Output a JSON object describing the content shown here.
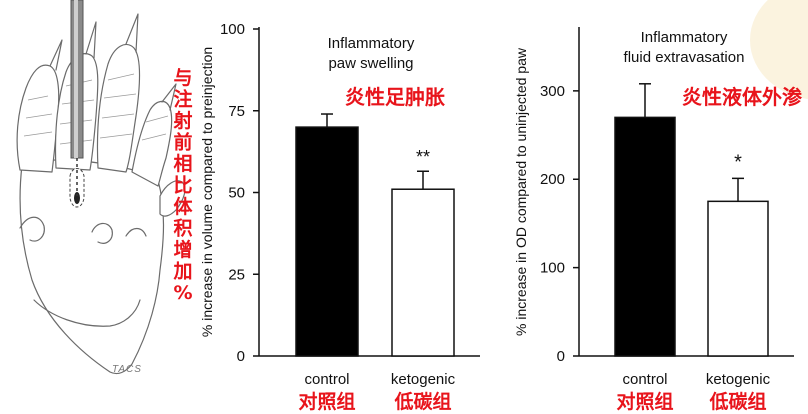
{
  "illustration": {
    "signature": "TACS"
  },
  "left_annotation": "与注射前相比体积增加%",
  "colors": {
    "annotation_red": "#e8141b",
    "control_bar": "#000000",
    "ketogenic_bar": "#ffffff"
  },
  "chart_data": [
    {
      "type": "bar",
      "title": "Inflammatory\npaw swelling",
      "title_lines": [
        "Inflammatory",
        "paw swelling"
      ],
      "title_cn": "炎性足肿胀",
      "ylabel": "% increase in volume compared to preinjection",
      "ylim": [
        0,
        100
      ],
      "yticks": [
        0,
        25,
        50,
        75,
        100
      ],
      "categories": [
        "control",
        "ketogenic"
      ],
      "categories_cn": [
        "对照组",
        "低碳组"
      ],
      "values": [
        70,
        51
      ],
      "errors": [
        4,
        5.5
      ],
      "significance": [
        "",
        "**"
      ],
      "bar_colors": [
        "#000000",
        "#ffffff"
      ],
      "grid": false
    },
    {
      "type": "bar",
      "title": "Inflammatory\nfluid extravasation",
      "title_lines": [
        "Inflammatory",
        "fluid extravasation"
      ],
      "title_cn": "炎性液体外渗",
      "ylabel": "% increase in OD compared to uninjected paw",
      "ylim": [
        0,
        370
      ],
      "yticks": [
        0,
        100,
        200,
        300
      ],
      "categories": [
        "control",
        "ketogenic"
      ],
      "categories_cn": [
        "对照组",
        "低碳组"
      ],
      "values": [
        270,
        175
      ],
      "errors": [
        38,
        26
      ],
      "significance": [
        "",
        "*"
      ],
      "bar_colors": [
        "#000000",
        "#ffffff"
      ],
      "grid": false
    }
  ]
}
